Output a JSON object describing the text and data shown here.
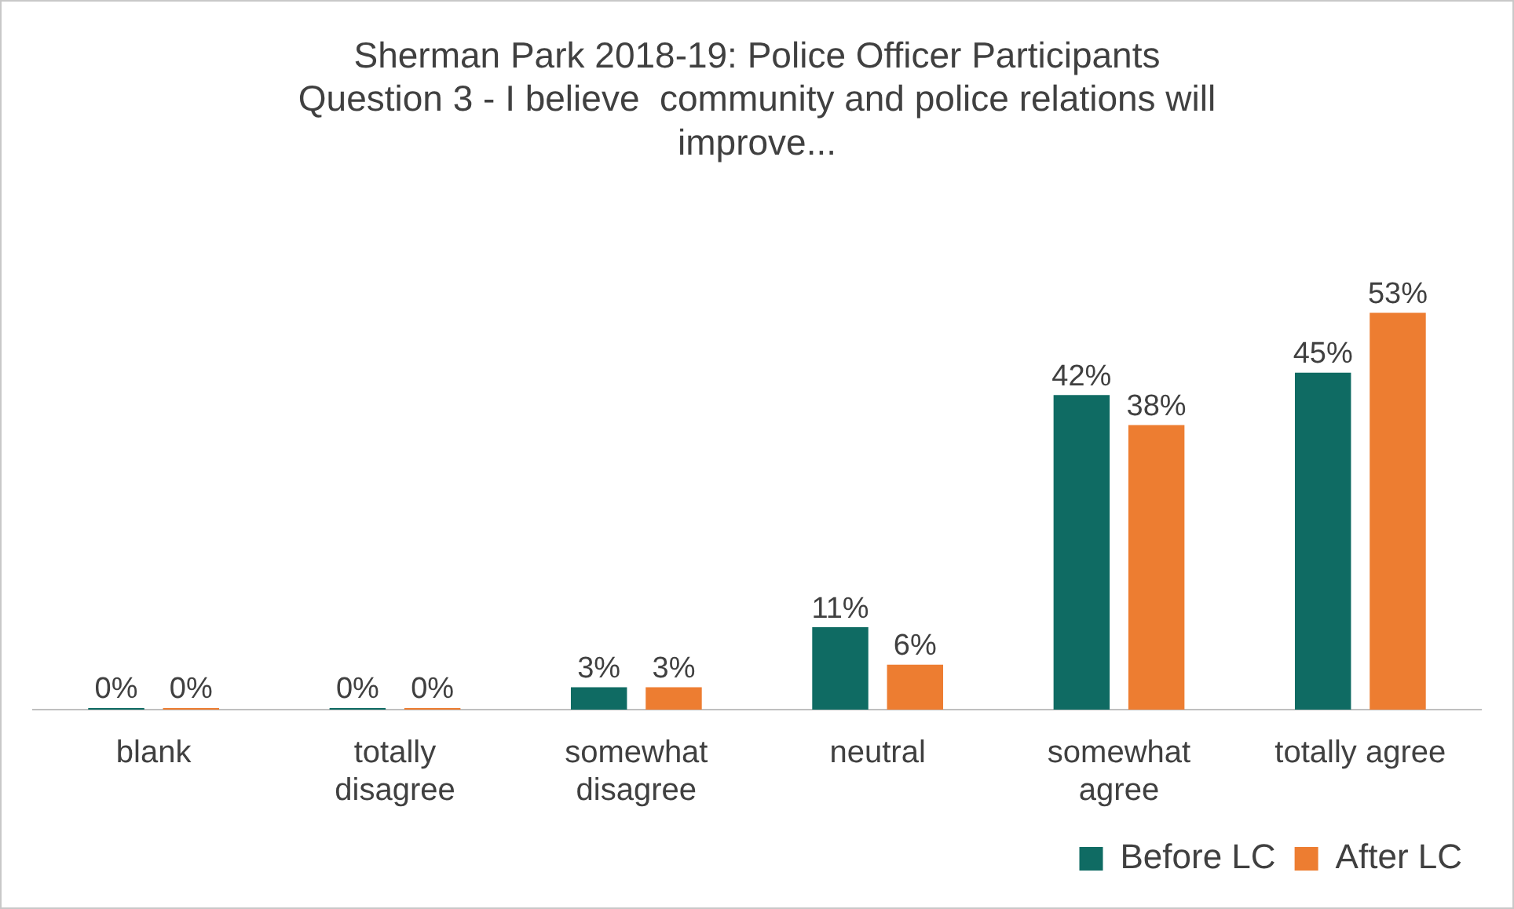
{
  "chart_data": {
    "type": "bar",
    "title": "Sherman Park 2018-19: Police Officer Participants Question 3 - I believe  community and police relations will improve...",
    "categories": [
      "blank",
      "totally disagree",
      "somewhat disagree",
      "neutral",
      "somewhat agree",
      "totally agree"
    ],
    "series": [
      {
        "name": "Before LC",
        "color": "#0f6b63",
        "values": [
          0,
          0,
          3,
          11,
          42,
          45
        ],
        "value_labels": [
          "0%",
          "0%",
          "3%",
          "11%",
          "42%",
          "45%"
        ]
      },
      {
        "name": "After LC",
        "color": "#ed7d31",
        "values": [
          0,
          0,
          3,
          6,
          38,
          53
        ],
        "value_labels": [
          "0%",
          "0%",
          "3%",
          "6%",
          "38%",
          "53%"
        ]
      }
    ],
    "grid": false,
    "legend": "bottom right"
  }
}
